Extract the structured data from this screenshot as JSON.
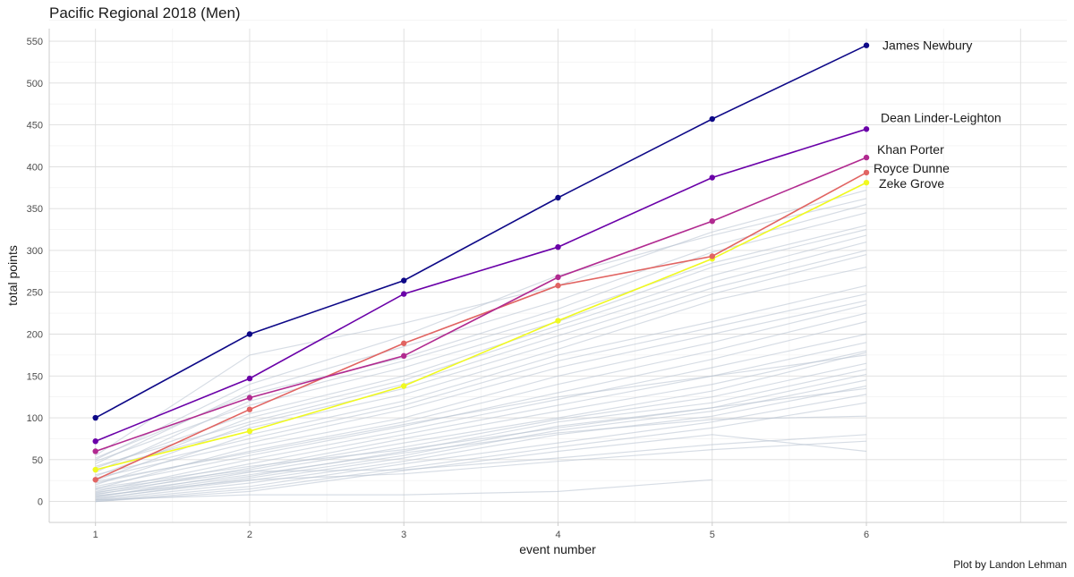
{
  "chart_data": {
    "type": "line",
    "title": "Pacific Regional 2018 (Men)",
    "xlabel": "event number",
    "ylabel": "total points",
    "caption": "Plot by Landon Lehman",
    "x": [
      1,
      2,
      3,
      4,
      5,
      6
    ],
    "xlim": [
      0.7,
      7.3
    ],
    "ylim": [
      -25,
      565
    ],
    "x_ticks": [
      "1",
      "2",
      "3",
      "4",
      "5",
      "6"
    ],
    "y_ticks": [
      "0",
      "50",
      "100",
      "150",
      "200",
      "250",
      "300",
      "350",
      "400",
      "450",
      "500",
      "550"
    ],
    "grid": true,
    "highlighted_series": [
      {
        "name": "James Newbury",
        "values": [
          100,
          200,
          264,
          363,
          457,
          545
        ],
        "color": "#0d0887"
      },
      {
        "name": "Dean Linder-Leighton",
        "values": [
          72,
          147,
          248,
          304,
          387,
          445
        ],
        "color": "#6a00a8"
      },
      {
        "name": "Khan Porter",
        "values": [
          60,
          124,
          174,
          268,
          335,
          411
        ],
        "color": "#b12a90"
      },
      {
        "name": "Royce Dunne",
        "values": [
          26,
          110,
          189,
          258,
          293,
          393
        ],
        "color": "#e16462"
      },
      {
        "name": "Zeke Grove",
        "values": [
          38,
          84,
          138,
          216,
          290,
          381
        ],
        "color": "#f0f921"
      }
    ],
    "background_series": [
      {
        "values": [
          55,
          175,
          213,
          258,
          322,
          372
        ]
      },
      {
        "values": [
          50,
          140,
          198,
          270,
          318,
          362
        ]
      },
      {
        "values": [
          45,
          132,
          185,
          240,
          305,
          355
        ]
      },
      {
        "values": [
          52,
          128,
          172,
          230,
          298,
          345
        ]
      },
      {
        "values": [
          35,
          120,
          168,
          222,
          285,
          330
        ]
      },
      {
        "values": [
          48,
          115,
          160,
          215,
          280,
          325
        ]
      },
      {
        "values": [
          40,
          105,
          150,
          210,
          270,
          318
        ]
      },
      {
        "values": [
          30,
          100,
          145,
          205,
          262,
          310
        ]
      },
      {
        "values": [
          42,
          95,
          140,
          198,
          255,
          300
        ]
      },
      {
        "values": [
          25,
          92,
          135,
          190,
          248,
          295
        ]
      },
      {
        "values": [
          38,
          88,
          128,
          182,
          240,
          280
        ]
      },
      {
        "values": [
          20,
          80,
          120,
          175,
          215,
          258
        ]
      },
      {
        "values": [
          32,
          75,
          115,
          168,
          208,
          248
        ]
      },
      {
        "values": [
          28,
          70,
          110,
          160,
          200,
          240
        ]
      },
      {
        "values": [
          15,
          65,
          100,
          150,
          190,
          235
        ]
      },
      {
        "values": [
          22,
          60,
          95,
          140,
          180,
          225
        ]
      },
      {
        "values": [
          18,
          55,
          90,
          130,
          170,
          215
        ]
      },
      {
        "values": [
          12,
          50,
          85,
          122,
          160,
          200
        ]
      },
      {
        "values": [
          10,
          45,
          80,
          115,
          150,
          190
        ]
      },
      {
        "values": [
          8,
          40,
          75,
          108,
          140,
          180
        ]
      },
      {
        "values": [
          14,
          38,
          70,
          100,
          132,
          178
        ]
      },
      {
        "values": [
          5,
          35,
          65,
          98,
          125,
          165
        ]
      },
      {
        "values": [
          6,
          30,
          60,
          95,
          118,
          158
        ]
      },
      {
        "values": [
          3,
          28,
          55,
          90,
          112,
          152
        ]
      },
      {
        "values": [
          4,
          25,
          52,
          85,
          108,
          145
        ]
      },
      {
        "values": [
          2,
          22,
          48,
          80,
          102,
          138
        ]
      },
      {
        "values": [
          1,
          18,
          45,
          70,
          95,
          128
        ]
      },
      {
        "values": [
          0,
          15,
          40,
          65,
          88,
          118
        ]
      },
      {
        "values": [
          9,
          32,
          58,
          82,
          98,
          102
        ]
      },
      {
        "values": [
          11,
          36,
          38,
          52,
          68,
          80
        ]
      },
      {
        "values": [
          7,
          26,
          33,
          48,
          62,
          72
        ]
      },
      {
        "values": [
          0,
          12,
          37,
          60,
          80,
          60
        ]
      },
      {
        "values": [
          2,
          8,
          8,
          12,
          26,
          null
        ]
      },
      {
        "values": [
          16,
          42,
          62,
          88,
          112,
          135
        ]
      },
      {
        "values": [
          24,
          58,
          92,
          125,
          150,
          175
        ]
      }
    ]
  }
}
